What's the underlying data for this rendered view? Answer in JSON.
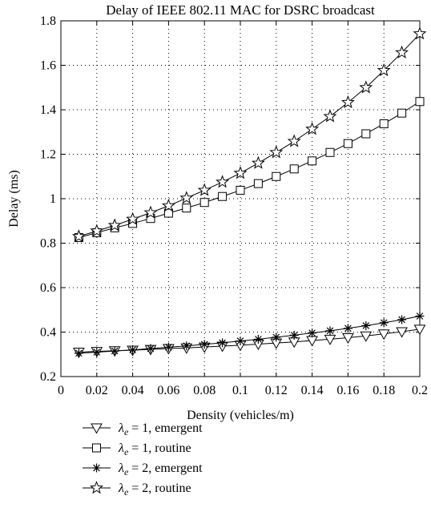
{
  "chart_data": {
    "type": "line",
    "title": "Delay of IEEE 802.11 MAC for DSRC broadcast",
    "xlabel": "Density (vehicles/m)",
    "ylabel": "Delay (ms)",
    "xlim": [
      0,
      0.2
    ],
    "ylim": [
      0.2,
      1.8
    ],
    "xticks": [
      "0",
      "0.02",
      "0.04",
      "0.06",
      "0.08",
      "0.1",
      "0.12",
      "0.14",
      "0.16",
      "0.18",
      "0.2"
    ],
    "yticks": [
      "0.2",
      "0.4",
      "0.6",
      "0.8",
      "1",
      "1.2",
      "1.4",
      "1.6",
      "1.8"
    ],
    "grid": "dotted",
    "legend_position": "below plot",
    "x": [
      0.01,
      0.02,
      0.03,
      0.04,
      0.05,
      0.06,
      0.07,
      0.08,
      0.09,
      0.1,
      0.11,
      0.12,
      0.13,
      0.14,
      0.15,
      0.16,
      0.17,
      0.18,
      0.19,
      0.2
    ],
    "series": [
      {
        "name": "λe = 1, emergent",
        "legend_lambda": "λ",
        "legend_sub": "e",
        "legend_text": " = 1, emergent",
        "marker": "triangle-down",
        "values": [
          0.31,
          0.313,
          0.316,
          0.319,
          0.322,
          0.326,
          0.329,
          0.333,
          0.337,
          0.341,
          0.346,
          0.351,
          0.356,
          0.362,
          0.368,
          0.375,
          0.383,
          0.392,
          0.402,
          0.413
        ]
      },
      {
        "name": "λe = 1, routine",
        "legend_lambda": "λ",
        "legend_sub": "e",
        "legend_text": " = 1, routine",
        "marker": "square",
        "values": [
          0.825,
          0.847,
          0.869,
          0.889,
          0.911,
          0.935,
          0.958,
          0.983,
          1.01,
          1.038,
          1.068,
          1.1,
          1.134,
          1.17,
          1.208,
          1.248,
          1.292,
          1.337,
          1.385,
          1.437
        ]
      },
      {
        "name": "λe = 2, emergent",
        "legend_lambda": "λ",
        "legend_sub": "e",
        "legend_text": " = 2, emergent",
        "marker": "asterisk",
        "values": [
          0.305,
          0.31,
          0.315,
          0.32,
          0.326,
          0.332,
          0.338,
          0.345,
          0.352,
          0.36,
          0.368,
          0.377,
          0.386,
          0.396,
          0.406,
          0.417,
          0.429,
          0.442,
          0.456,
          0.472
        ]
      },
      {
        "name": "λe = 2, routine",
        "legend_lambda": "λ",
        "legend_sub": "e",
        "legend_text": " = 2, routine",
        "marker": "star",
        "values": [
          0.83,
          0.855,
          0.88,
          0.908,
          0.937,
          0.968,
          1.003,
          1.038,
          1.075,
          1.115,
          1.16,
          1.208,
          1.258,
          1.313,
          1.37,
          1.433,
          1.5,
          1.577,
          1.657,
          1.742
        ]
      }
    ]
  }
}
